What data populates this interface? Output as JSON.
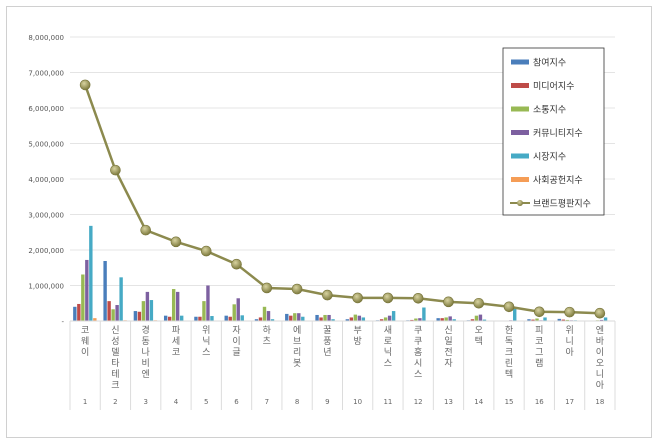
{
  "chart_data": {
    "type": "bar",
    "title": "",
    "xlabel": "",
    "ylabel": "",
    "ylim": [
      0,
      8000000
    ],
    "yticks": [
      0,
      1000000,
      2000000,
      3000000,
      4000000,
      5000000,
      6000000,
      7000000,
      8000000
    ],
    "ytick_labels": [
      "-",
      "1,000,000",
      "2,000,000",
      "3,000,000",
      "4,000,000",
      "5,000,000",
      "6,000,000",
      "7,000,000",
      "8,000,000"
    ],
    "grid": true,
    "legend_position": "top-right",
    "categories": [
      "코웨이",
      "신성델타테크",
      "경동나비엔",
      "파세코",
      "위닉스",
      "자이글",
      "하츠",
      "에브리봇",
      "꿀풍년",
      "부방",
      "새로닉스",
      "쿠쿠홈시스",
      "신일전자",
      "오텍",
      "한독크린텍",
      "피코그램",
      "위니아",
      "엔바이오니아"
    ],
    "ranks": [
      "1",
      "2",
      "3",
      "4",
      "5",
      "6",
      "7",
      "8",
      "9",
      "10",
      "11",
      "12",
      "13",
      "14",
      "15",
      "16",
      "17",
      "18"
    ],
    "series": [
      {
        "name": "참여지수",
        "color": "#4a7ebb",
        "values": [
          400000,
          1690000,
          280000,
          150000,
          120000,
          150000,
          50000,
          200000,
          170000,
          50000,
          20000,
          20000,
          80000,
          20000,
          10000,
          50000,
          60000,
          10000
        ]
      },
      {
        "name": "미디어지수",
        "color": "#be4b48",
        "values": [
          480000,
          560000,
          260000,
          120000,
          120000,
          120000,
          100000,
          150000,
          100000,
          100000,
          50000,
          30000,
          80000,
          50000,
          10000,
          40000,
          40000,
          10000
        ]
      },
      {
        "name": "소통지수",
        "color": "#98b954",
        "values": [
          1310000,
          330000,
          560000,
          900000,
          560000,
          470000,
          400000,
          220000,
          170000,
          180000,
          100000,
          70000,
          100000,
          150000,
          10000,
          70000,
          30000,
          20000
        ]
      },
      {
        "name": "커뮤니티지수",
        "color": "#7d60a0",
        "values": [
          1720000,
          450000,
          820000,
          820000,
          1000000,
          640000,
          280000,
          220000,
          170000,
          150000,
          150000,
          80000,
          130000,
          180000,
          20000,
          20000,
          20000,
          30000
        ]
      },
      {
        "name": "시장지수",
        "color": "#46aac5",
        "values": [
          2680000,
          1230000,
          590000,
          150000,
          140000,
          160000,
          50000,
          120000,
          50000,
          100000,
          280000,
          380000,
          50000,
          40000,
          350000,
          100000,
          20000,
          100000
        ]
      },
      {
        "name": "사회공헌지수",
        "color": "#f59d56",
        "values": [
          80000,
          20000,
          20000,
          10000,
          10000,
          10000,
          10000,
          10000,
          10000,
          10000,
          10000,
          10000,
          10000,
          10000,
          10000,
          10000,
          10000,
          10000
        ]
      },
      {
        "name": "브랜드평판지수",
        "color": "#8c8a4e",
        "type": "line",
        "values": [
          6650000,
          4250000,
          2560000,
          2230000,
          1970000,
          1600000,
          930000,
          900000,
          730000,
          650000,
          650000,
          640000,
          540000,
          500000,
          400000,
          260000,
          250000,
          220000
        ]
      }
    ]
  }
}
